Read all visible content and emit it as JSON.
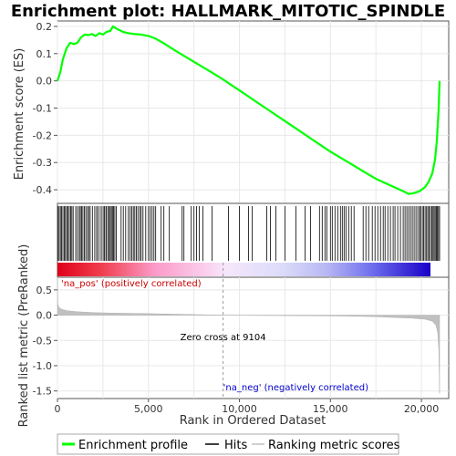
{
  "chart_data": {
    "type": "line",
    "title": "Enrichment plot: HALLMARK_MITOTIC_SPINDLE",
    "ylabel_top": "Enrichment score (ES)",
    "ylabel_bottom": "Ranked list metric (PreRanked)",
    "xlabel": "Rank in Ordered Dataset",
    "xlim": [
      0,
      21500
    ],
    "x_ticks": [
      0,
      5000,
      10000,
      15000,
      20000
    ],
    "x_tick_labels": [
      "0",
      "5,000",
      "10,000",
      "15,000",
      "20,000"
    ],
    "es_ylim": [
      -0.45,
      0.22
    ],
    "es_ticks": [
      0.2,
      0.1,
      0.0,
      -0.1,
      -0.2,
      -0.3,
      -0.4
    ],
    "es_tick_labels": [
      "0.2",
      "0.1",
      "0.0",
      "-0.1",
      "-0.2",
      "-0.3",
      "-0.4"
    ],
    "metric_ylim": [
      -1.65,
      0.75
    ],
    "metric_ticks": [
      0.5,
      0.0,
      -0.5,
      -1.0,
      -1.5
    ],
    "metric_tick_labels": [
      "0.5",
      "0.0",
      "-0.5",
      "-1.0",
      "-1.5"
    ],
    "series": [
      {
        "name": "Enrichment profile",
        "color": "#00ff00",
        "x": [
          0,
          150,
          300,
          500,
          700,
          900,
          1100,
          1300,
          1500,
          1700,
          1900,
          2100,
          2300,
          2500,
          2700,
          2900,
          3050,
          3300,
          3600,
          3900,
          4200,
          4600,
          5000,
          5400,
          5800,
          6500,
          7500,
          8500,
          9104,
          10000,
          11000,
          12000,
          13000,
          14000,
          15000,
          16000,
          17000,
          17500,
          18000,
          18500,
          19000,
          19300,
          19600,
          19900,
          20200,
          20400,
          20600,
          20750,
          20850,
          20950,
          21000
        ],
        "y": [
          0.0,
          0.03,
          0.08,
          0.12,
          0.14,
          0.135,
          0.14,
          0.16,
          0.17,
          0.168,
          0.172,
          0.165,
          0.175,
          0.17,
          0.18,
          0.183,
          0.2,
          0.19,
          0.18,
          0.175,
          0.172,
          0.17,
          0.165,
          0.155,
          0.14,
          0.11,
          0.07,
          0.03,
          0.005,
          -0.035,
          -0.08,
          -0.125,
          -0.17,
          -0.215,
          -0.26,
          -0.3,
          -0.34,
          -0.36,
          -0.375,
          -0.39,
          -0.405,
          -0.415,
          -0.412,
          -0.405,
          -0.39,
          -0.37,
          -0.34,
          -0.29,
          -0.22,
          -0.1,
          0.0
        ]
      },
      {
        "name": "Hits",
        "color": "#000000",
        "positions": [
          20,
          90,
          160,
          230,
          300,
          370,
          440,
          510,
          580,
          650,
          720,
          790,
          860,
          1000,
          1100,
          1200,
          1260,
          1330,
          1400,
          1480,
          1560,
          1650,
          1720,
          1800,
          1920,
          2050,
          2150,
          2230,
          2350,
          2450,
          2550,
          2600,
          2680,
          2760,
          2830,
          2900,
          2960,
          3020,
          3080,
          3150,
          3230,
          3500,
          3620,
          3750,
          3900,
          4000,
          4080,
          4170,
          4250,
          4330,
          4420,
          4520,
          4600,
          4700,
          4850,
          5000,
          5100,
          5200,
          5300,
          5400,
          5700,
          5850,
          6150,
          6850,
          6950,
          7350,
          7500,
          7650,
          7800,
          8000,
          8500,
          9400,
          10000,
          10500,
          10700,
          11500,
          11700,
          12000,
          12500,
          13100,
          13600,
          13900,
          14400,
          14550,
          14700,
          14800,
          15000,
          15100,
          15250,
          15400,
          15550,
          15650,
          15750,
          15850,
          16000,
          16150,
          16300,
          16800,
          16950,
          17100,
          17300,
          17450,
          17600,
          17750,
          17900,
          18000,
          18150,
          18300,
          18450,
          18550,
          18700,
          18850,
          19000,
          19100,
          19200,
          19300,
          19400,
          19500,
          19600,
          19700,
          19800,
          19900,
          19950,
          20050,
          20120,
          20200,
          20280,
          20350,
          20420,
          20500,
          20570,
          20640,
          20700,
          20760,
          20820,
          20880,
          20940,
          21000
        ]
      },
      {
        "name": "Ranking metric scores",
        "color": "#c0c0c0",
        "x": [
          0,
          20,
          80,
          200,
          500,
          1000,
          2000,
          3000,
          5000,
          7000,
          9104,
          11000,
          14000,
          16000,
          17500,
          18500,
          19500,
          20200,
          20600,
          20800,
          20900,
          20960,
          21000
        ],
        "y": [
          0.75,
          0.22,
          0.16,
          0.12,
          0.09,
          0.07,
          0.05,
          0.04,
          0.03,
          0.015,
          0.0,
          -0.006,
          -0.012,
          -0.018,
          -0.03,
          -0.045,
          -0.06,
          -0.08,
          -0.12,
          -0.2,
          -0.35,
          -0.7,
          -1.55
        ]
      }
    ],
    "zero_cross_text": "Zero cross at 9104",
    "zero_cross": 9104,
    "pos_label": "'na_pos' (positively correlated)",
    "neg_label": "'na_neg' (negatively correlated)",
    "legend": {
      "placement": "bottom",
      "items": [
        "Enrichment profile",
        "Hits",
        "Ranking metric scores"
      ]
    },
    "colors": {
      "es_line": "#00ff00",
      "pos_text": "#cc0000",
      "neg_text": "#0000cc",
      "hits": "#000000",
      "metric_fill": "#c0c0c0"
    }
  }
}
